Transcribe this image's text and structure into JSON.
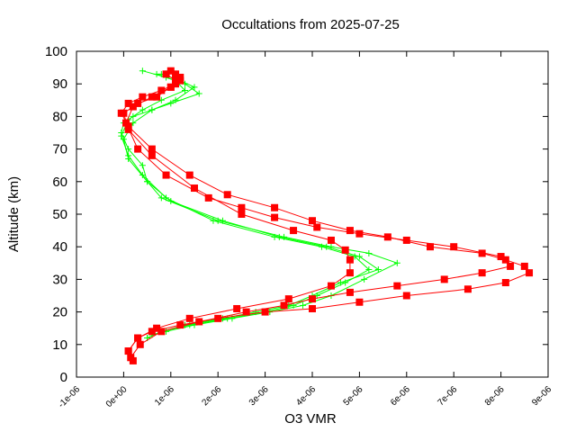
{
  "chart_data": {
    "type": "line",
    "title": "Occultations from 2025-07-25",
    "xlabel": "O3 VMR",
    "ylabel": "Altitude (km)",
    "xlim": [
      -1e-06,
      9e-06
    ],
    "ylim": [
      0,
      100
    ],
    "x_ticks": [
      "-1e-06",
      "0e+00",
      "1e-06",
      "2e-06",
      "3e-06",
      "4e-06",
      "5e-06",
      "6e-06",
      "7e-06",
      "8e-06",
      "9e-06"
    ],
    "y_ticks": [
      "0",
      "10",
      "20",
      "30",
      "40",
      "50",
      "60",
      "70",
      "80",
      "90",
      "100"
    ],
    "grid": false,
    "legend": "none",
    "series": [
      {
        "color": "#00ff00",
        "marker": "plus",
        "profiles": [
          {
            "x": [
              6e-07,
              9e-07,
              1.5e-06,
              2.3e-06,
              3.1e-06,
              3.8e-06,
              4.4e-06,
              5.1e-06,
              5.8e-06,
              5.2e-06,
              4.4e-06,
              3.4e-06,
              2e-06,
              8e-07,
              5e-07,
              4e-07,
              1e-07,
              -5e-08,
              0.0,
              2e-07,
              6e-07,
              1e-06,
              1.6e-06,
              1.3e-06,
              9e-07,
              4e-07
            ],
            "y": [
              13,
              14,
              16,
              18,
              20,
              22,
              25,
              30,
              35,
              38,
              40,
              43,
              48,
              55,
              60,
              65,
              70,
              75,
              78,
              80,
              82,
              84,
              87,
              90,
              92,
              94
            ]
          },
          {
            "x": [
              5e-07,
              8e-07,
              1.4e-06,
              2.2e-06,
              3e-06,
              3.6e-06,
              4.1e-06,
              4.7e-06,
              5.2e-06,
              4.9e-06,
              4.2e-06,
              3.2e-06,
              1.9e-06,
              9e-07,
              4e-07,
              1e-07,
              -5e-08,
              1e-07,
              4e-07,
              8e-07,
              1.3e-06,
              1.1e-06,
              7e-07
            ],
            "y": [
              12,
              14,
              16,
              18,
              20,
              22,
              25,
              29,
              33,
              37,
              40,
              43,
              48,
              55,
              62,
              68,
              74,
              79,
              82,
              85,
              88,
              91,
              93
            ]
          },
          {
            "x": [
              5e-07,
              8e-07,
              1.3e-06,
              2.1e-06,
              2.8e-06,
              3.5e-06,
              4e-06,
              4.6e-06,
              5.4e-06,
              5e-06,
              4.3e-06,
              3.3e-06,
              2.1e-06,
              1e-06,
              5e-07,
              1e-07,
              0.0,
              2e-07,
              6e-07,
              1.1e-06,
              1.5e-06,
              1.2e-06,
              8e-07
            ],
            "y": [
              12,
              14,
              16,
              18,
              20,
              22,
              25,
              29,
              33,
              37,
              40,
              43,
              48,
              54,
              60,
              67,
              73,
              78,
              82,
              85,
              89,
              91,
              93
            ]
          }
        ]
      },
      {
        "color": "#ff0000",
        "marker": "square",
        "profiles": [
          {
            "x": [
              2e-07,
              1e-07,
              3e-07,
              6e-07,
              1.2e-06,
              2e-06,
              3e-06,
              4e-06,
              5e-06,
              6e-06,
              7.3e-06,
              8.1e-06,
              8.6e-06,
              8.5e-06,
              8.1e-06,
              7.6e-06,
              6.5e-06,
              5.6e-06,
              4.8e-06,
              4e-06,
              3.2e-06,
              2.2e-06,
              1.4e-06,
              6e-07,
              1e-07,
              -5e-08,
              1e-07,
              4e-07,
              8e-07,
              1.1e-06,
              1.2e-06,
              1e-06
            ],
            "y": [
              5,
              8,
              12,
              14,
              16,
              18,
              20,
              21,
              23,
              25,
              27,
              29,
              32,
              34,
              36,
              38,
              40,
              43,
              45,
              48,
              52,
              56,
              62,
              70,
              77,
              81,
              84,
              86,
              88,
              90,
              92,
              94
            ]
          },
          {
            "x": [
              1e-07,
              3e-07,
              7e-07,
              1.4e-06,
              2.4e-06,
              3.5e-06,
              4.4e-06,
              4.8e-06,
              4.8e-06,
              4.7e-06,
              4.4e-06,
              3.6e-06,
              2.5e-06,
              1.5e-06,
              6e-07,
              1e-07,
              0.0,
              3e-07,
              7e-07,
              1e-06,
              1.1e-06,
              9e-07
            ],
            "y": [
              8,
              12,
              15,
              18,
              21,
              24,
              28,
              32,
              36,
              39,
              42,
              45,
              50,
              58,
              68,
              76,
              81,
              84,
              86,
              89,
              91,
              93
            ]
          },
          {
            "x": [
              1.5e-07,
              3.5e-07,
              8e-07,
              1.6e-06,
              2.6e-06,
              3.4e-06,
              4e-06,
              4.8e-06,
              5.8e-06,
              6.8e-06,
              7.6e-06,
              8.2e-06,
              8e-06,
              7e-06,
              6e-06,
              5e-06,
              4.1e-06,
              3.2e-06,
              2.5e-06,
              1.8e-06,
              9e-07,
              3e-07,
              5e-08,
              2e-07,
              6e-07,
              1e-06,
              1.2e-06,
              1.1e-06
            ],
            "y": [
              6,
              10,
              14,
              17,
              20,
              22,
              24,
              26,
              28,
              30,
              32,
              34,
              37,
              40,
              42,
              44,
              46,
              49,
              52,
              55,
              62,
              70,
              78,
              83,
              86,
              89,
              91,
              93
            ]
          }
        ]
      }
    ]
  }
}
